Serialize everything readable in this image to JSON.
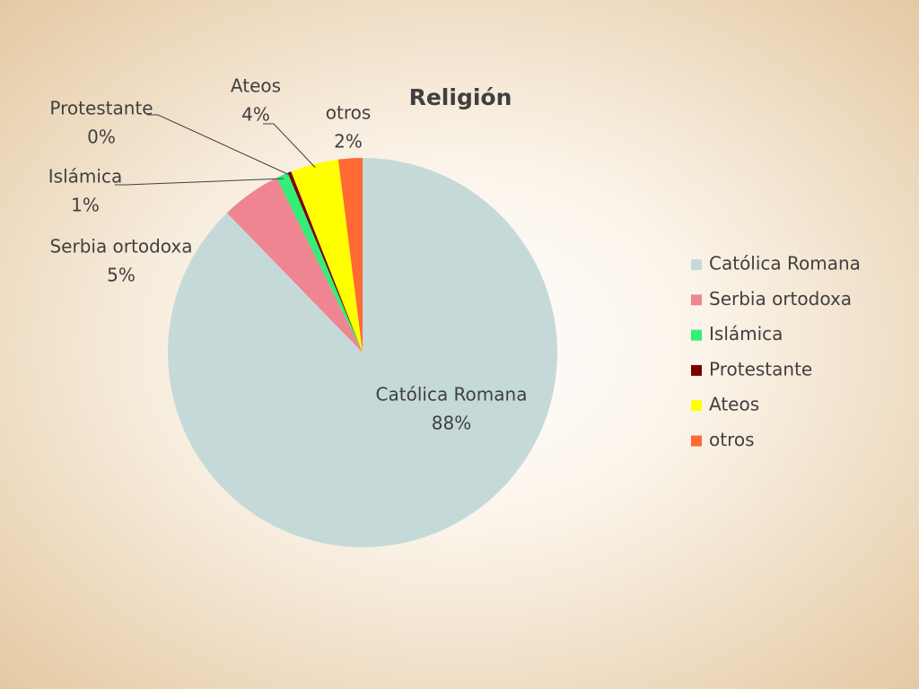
{
  "chart_data": {
    "type": "pie",
    "title": "Religión",
    "categories": [
      "Católica Romana",
      "Serbia ortodoxa",
      "Islámica",
      "Protestante",
      "Ateos",
      "otros"
    ],
    "values": [
      88,
      5,
      1,
      0.3,
      4,
      2
    ],
    "value_labels": [
      "88%",
      "5%",
      "1%",
      "0%",
      "4%",
      "2%"
    ],
    "colors": [
      "#c5d9d9",
      "#ef8590",
      "#33ee77",
      "#7a0000",
      "#ffff00",
      "#ff6a33"
    ],
    "legend": "right"
  }
}
